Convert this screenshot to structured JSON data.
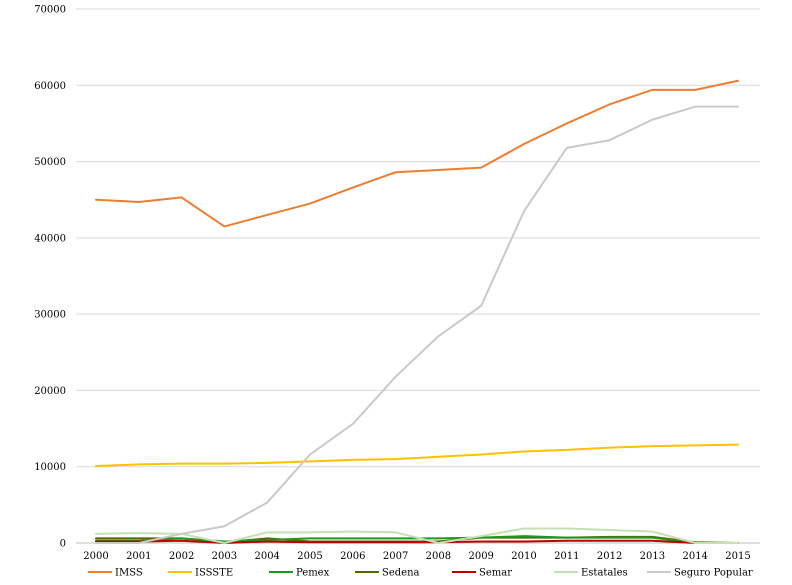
{
  "chart_data": {
    "type": "line",
    "title": "",
    "xlabel": "",
    "ylabel": "",
    "x": [
      "2000",
      "2001",
      "2002",
      "2003",
      "2004",
      "2005",
      "2006",
      "2007",
      "2008",
      "2009",
      "2010",
      "2011",
      "2012",
      "2013",
      "2014",
      "2015"
    ],
    "ylim": [
      0,
      70000
    ],
    "yticks": [
      "0",
      "10000",
      "20000",
      "30000",
      "40000",
      "50000",
      "60000",
      "70000"
    ],
    "grid": true,
    "legend": "bottom",
    "series": [
      {
        "name": "IMSS",
        "color": "#ed7d31",
        "width": 2,
        "values": [
          45000,
          44700,
          45300,
          41500,
          43000,
          44500,
          46600,
          48600,
          48900,
          49200,
          52300,
          55000,
          57500,
          59400,
          59400,
          60600
        ]
      },
      {
        "name": "ISSSTE",
        "color": "#ffc000",
        "width": 2,
        "values": [
          10100,
          10300,
          10400,
          10400,
          10500,
          10700,
          10900,
          11000,
          11300,
          11600,
          12000,
          12200,
          12500,
          12700,
          12800,
          12900
        ]
      },
      {
        "name": "Pemex",
        "color": "#1a9a1a",
        "width": 2,
        "values": [
          300,
          300,
          600,
          200,
          400,
          600,
          600,
          600,
          600,
          700,
          900,
          700,
          700,
          700,
          0,
          0
        ]
      },
      {
        "name": "Sedena",
        "color": "#4f6a00",
        "width": 2,
        "values": [
          600,
          600,
          600,
          100,
          600,
          200,
          200,
          200,
          200,
          700,
          700,
          700,
          800,
          800,
          100,
          0
        ]
      },
      {
        "name": "Semar",
        "color": "#c00000",
        "width": 2,
        "values": [
          200,
          200,
          300,
          0,
          200,
          100,
          100,
          100,
          100,
          200,
          200,
          300,
          300,
          300,
          0,
          0
        ]
      },
      {
        "name": "Estatales",
        "color": "#c5e0b4",
        "width": 2,
        "values": [
          1200,
          1300,
          1200,
          0,
          1400,
          1400,
          1500,
          1400,
          0,
          900,
          1900,
          1900,
          1700,
          1500,
          0,
          0
        ]
      },
      {
        "name": "Seguro Popular",
        "color": "#c9c9c9",
        "width": 2,
        "values": [
          0,
          0,
          1200,
          2200,
          5300,
          11600,
          15600,
          21800,
          27100,
          31100,
          43500,
          51800,
          52800,
          55500,
          57200,
          57200
        ]
      }
    ]
  }
}
